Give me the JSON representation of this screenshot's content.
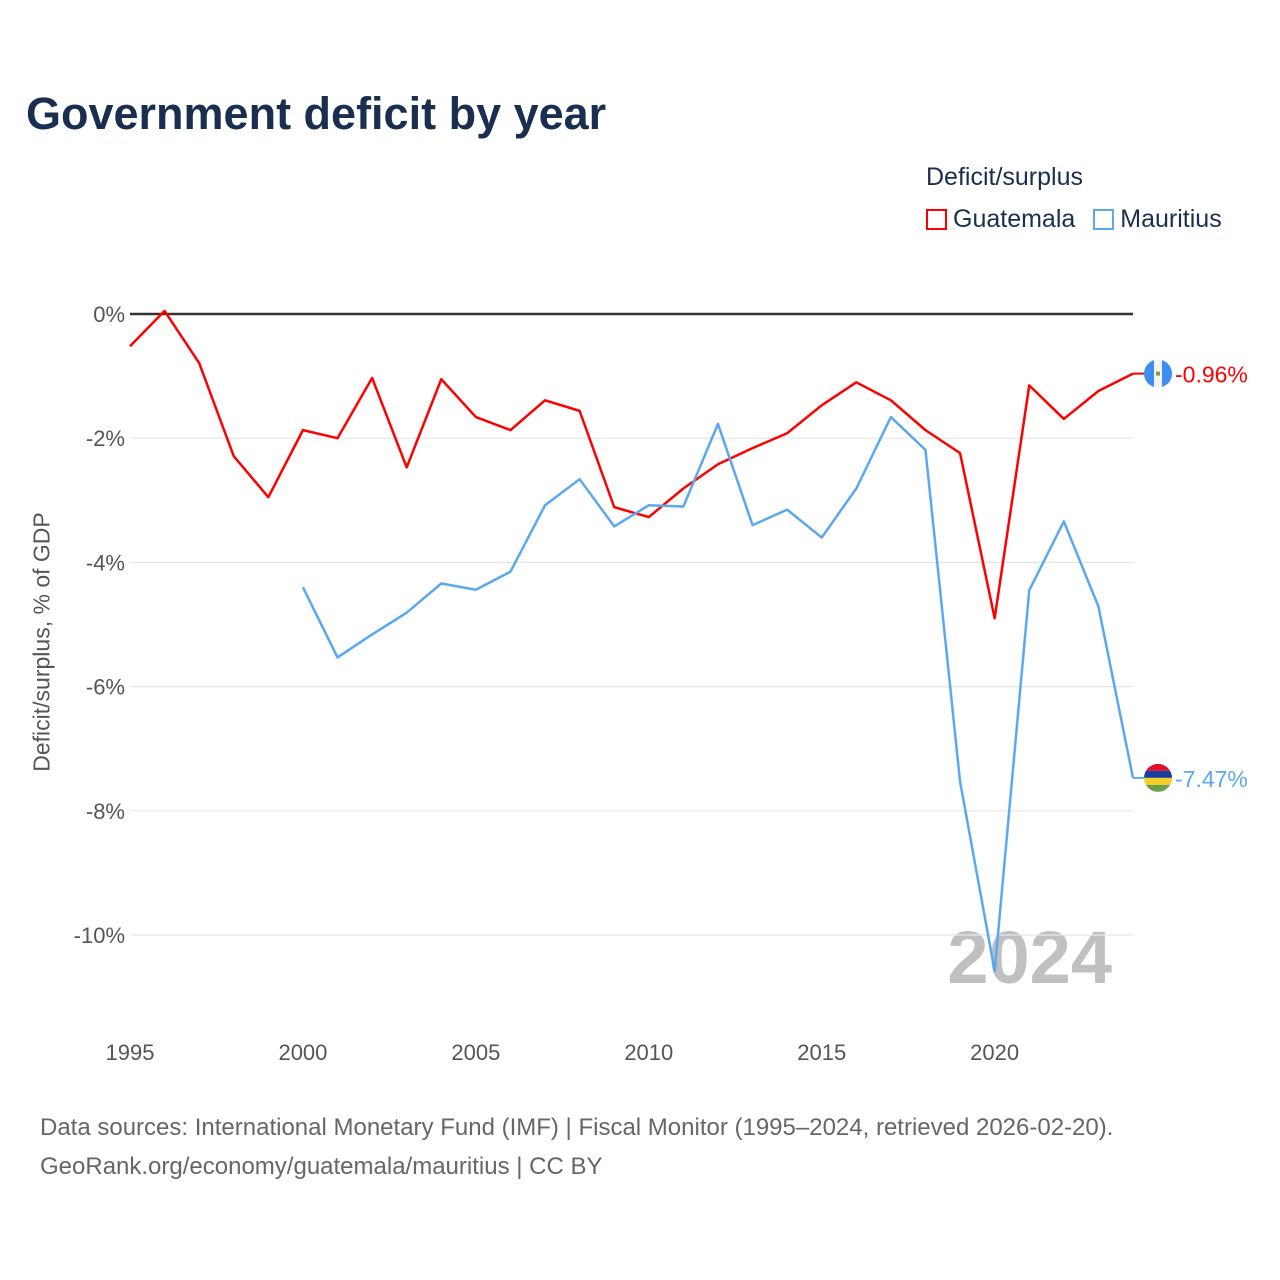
{
  "title": "Government deficit by year",
  "legend": {
    "title": "Deficit/surplus",
    "items": [
      {
        "label": "Guatemala",
        "color": "#ff0000"
      },
      {
        "label": "Mauritius",
        "color": "#5ba8f0"
      }
    ]
  },
  "source_lines": [
    "Data sources: International Monetary Fund (IMF) | Fiscal Monitor (1995–2024, retrieved 2026-02-20).",
    "GeoRank.org/economy/guatemala/mauritius | CC BY"
  ],
  "chart_data": {
    "type": "line",
    "title": "Government deficit by year",
    "xlabel": "",
    "ylabel": "Deficit/surplus, % of GDP",
    "xlim": [
      1995,
      2024
    ],
    "ylim": [
      -11,
      0.5
    ],
    "yticks": [
      0,
      -2,
      -4,
      -6,
      -8,
      -10
    ],
    "ytick_labels": [
      "0%",
      "-2%",
      "-4%",
      "-6%",
      "-8%",
      "-10%"
    ],
    "xticks": [
      1995,
      2000,
      2005,
      2010,
      2015,
      2020
    ],
    "xtick_labels": [
      "1995",
      "2000",
      "2005",
      "2010",
      "2015",
      "2020"
    ],
    "watermark_year": "2024",
    "grid": true,
    "legend_position": "top-right",
    "series": [
      {
        "name": "Guatemala",
        "color": "#ff0000",
        "end_label": "-0.96%",
        "x": [
          1995,
          1996,
          1997,
          1998,
          1999,
          2000,
          2001,
          2002,
          2003,
          2004,
          2005,
          2006,
          2007,
          2008,
          2009,
          2010,
          2011,
          2012,
          2013,
          2014,
          2015,
          2016,
          2017,
          2018,
          2019,
          2020,
          2021,
          2022,
          2023,
          2024
        ],
        "values": [
          -0.52,
          0.05,
          -0.79,
          -2.29,
          -2.95,
          -1.87,
          -2.0,
          -1.03,
          -2.47,
          -1.05,
          -1.66,
          -1.87,
          -1.39,
          -1.56,
          -3.11,
          -3.27,
          -2.81,
          -2.42,
          -2.16,
          -1.92,
          -1.47,
          -1.1,
          -1.39,
          -1.87,
          -2.24,
          -4.9,
          -1.15,
          -1.69,
          -1.24,
          -0.96
        ]
      },
      {
        "name": "Mauritius",
        "color": "#5ba8f0",
        "end_label": "-7.47%",
        "x": [
          2000,
          2001,
          2002,
          2003,
          2004,
          2005,
          2006,
          2007,
          2008,
          2009,
          2010,
          2011,
          2012,
          2013,
          2014,
          2015,
          2016,
          2017,
          2018,
          2019,
          2020,
          2021,
          2022,
          2023,
          2024
        ],
        "values": [
          -4.4,
          -5.53,
          -5.16,
          -4.81,
          -4.34,
          -4.44,
          -4.15,
          -3.08,
          -2.66,
          -3.42,
          -3.08,
          -3.1,
          -1.77,
          -3.4,
          -3.15,
          -3.6,
          -2.81,
          -1.66,
          -2.19,
          -7.53,
          -10.58,
          -4.45,
          -3.34,
          -4.71,
          -7.47
        ]
      }
    ]
  }
}
